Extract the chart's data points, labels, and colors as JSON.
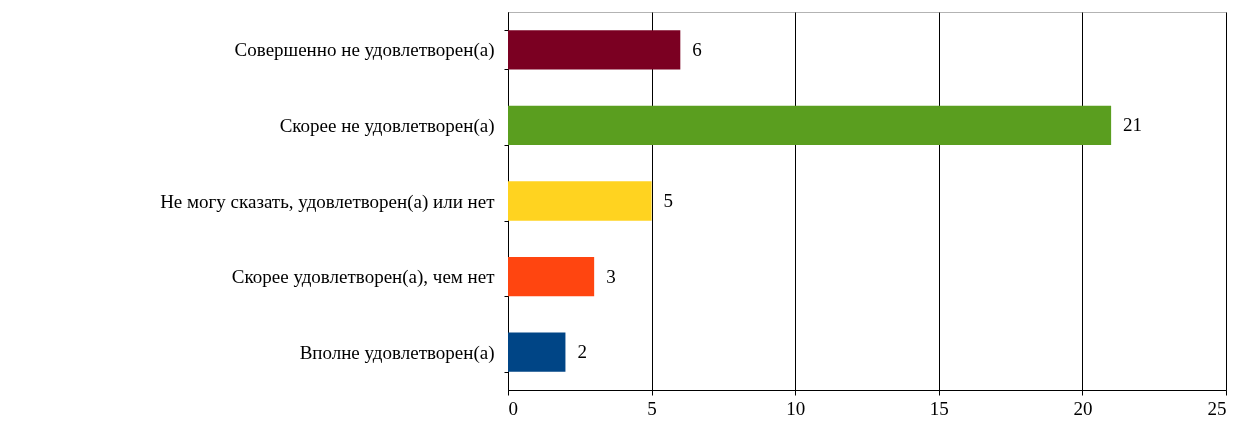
{
  "chart_data": {
    "type": "bar",
    "orientation": "horizontal",
    "categories": [
      "Совершенно не удовлетворен(а)",
      "Скорее не удовлетворен(а)",
      "Не могу сказать, удовлетворен(а) или нет",
      "Скорее удовлетворен(а), чем нет",
      "Вполне удовлетворен(а)"
    ],
    "values": [
      6,
      21,
      5,
      3,
      2
    ],
    "colors": [
      "#7b0022",
      "#5a9e1f",
      "#ffd320",
      "#ff4510",
      "#004586"
    ],
    "xlim": [
      0,
      25
    ],
    "xticks": [
      0,
      5,
      10,
      15,
      20,
      25
    ],
    "grid": "x",
    "data_labels": true
  }
}
